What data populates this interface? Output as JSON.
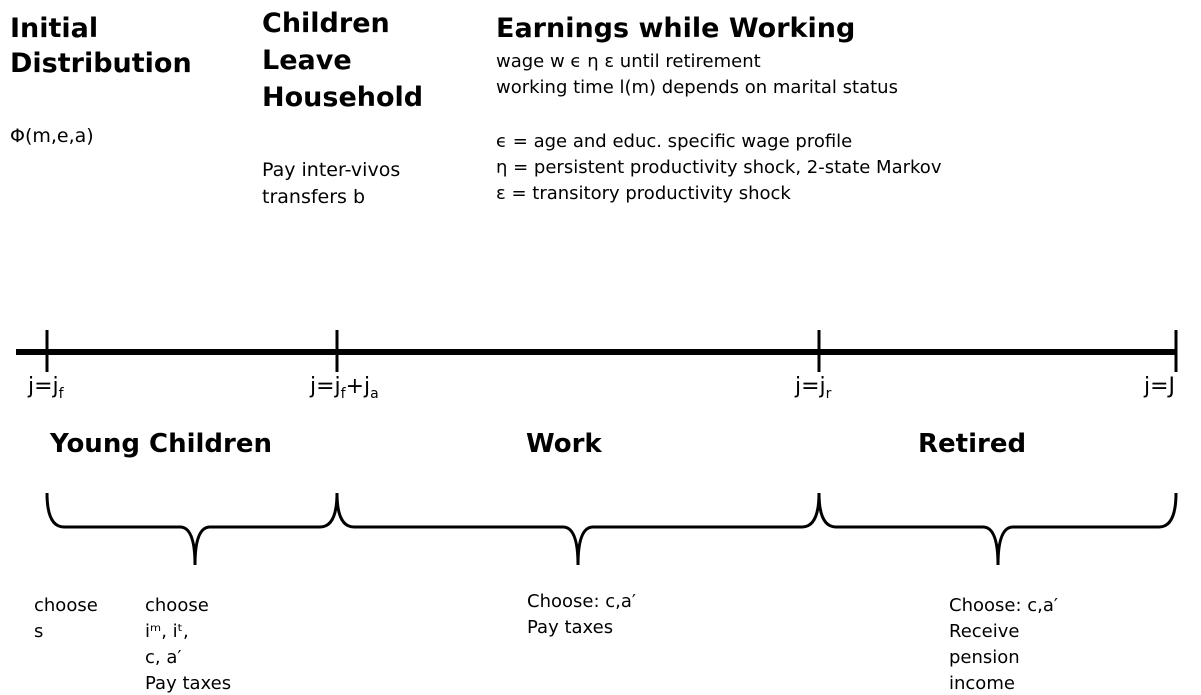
{
  "initial": {
    "title": [
      "Initial",
      "Distribution"
    ],
    "state": "Φ(m,e,a)"
  },
  "children_leave": {
    "title": [
      "Children",
      "Leave",
      "Household"
    ],
    "note": [
      "Pay inter-vivos",
      "transfers b"
    ]
  },
  "earnings": {
    "title": "Earnings while Working",
    "lines": [
      "wage w ϵ η ε until retirement",
      "working time l(m) depends on marital status",
      "ϵ = age and educ. specific wage profile",
      "η = persistent productivity shock, 2-state Markov",
      "ε = transitory productivity shock"
    ]
  },
  "timeline": {
    "points": [
      {
        "parts": [
          {
            "text": "j=j"
          },
          {
            "sub": "f"
          }
        ]
      },
      {
        "parts": [
          {
            "text": "j=j"
          },
          {
            "sub": "f"
          },
          {
            "text": "+j"
          },
          {
            "sub": "a"
          }
        ]
      },
      {
        "parts": [
          {
            "text": "j=j"
          },
          {
            "sub": "r"
          }
        ]
      },
      {
        "parts": [
          {
            "text": "j=J"
          }
        ]
      }
    ]
  },
  "phases": [
    "Young Children",
    "Work",
    "Retired"
  ],
  "notes": {
    "young_first": [
      "choose",
      "s"
    ],
    "young_second": [
      "choose",
      "iᵐ, iᵗ,",
      "c, a′",
      "Pay taxes"
    ],
    "work": [
      "Choose: c,a′",
      "Pay taxes"
    ],
    "retired": [
      "Choose: c,a′",
      "Receive",
      "pension",
      "income"
    ]
  }
}
